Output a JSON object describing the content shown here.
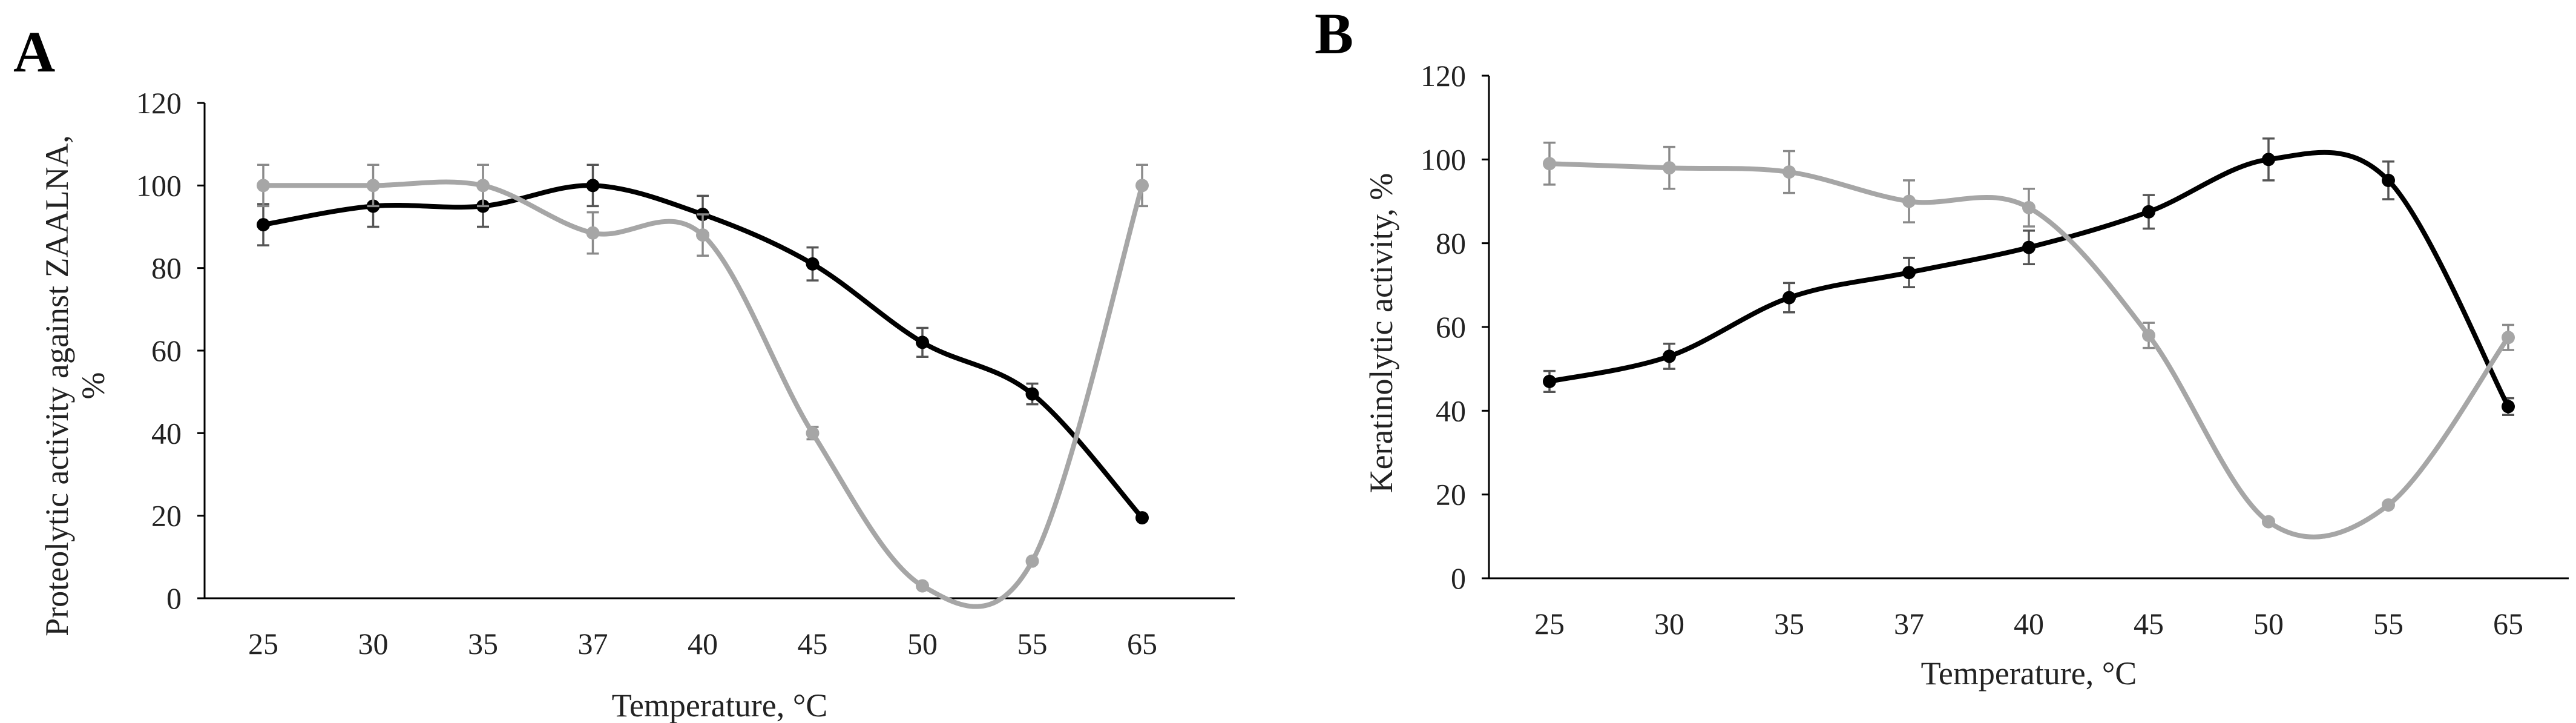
{
  "figure": {
    "colors": {
      "series_black": "#000000",
      "series_gray": "#a6a6a6",
      "errbar_black": "#555555",
      "errbar_gray": "#8a8a8a"
    }
  },
  "chart_data": [
    {
      "panel": "A",
      "type": "line",
      "title": "",
      "xlabel": "Temperature, °C",
      "ylabel": "Proteolytic activity against ZAALNA, %",
      "ylabel_lines": [
        "Proteolytic activity against ZAALNA,",
        "%"
      ],
      "categories": [
        "25",
        "30",
        "35",
        "37",
        "40",
        "45",
        "50",
        "55",
        "65"
      ],
      "ylim": [
        0,
        120
      ],
      "yticks": [
        0,
        20,
        40,
        60,
        80,
        100,
        120
      ],
      "grid": false,
      "series": [
        {
          "name": "black",
          "color": "#000000",
          "values": [
            90.5,
            95,
            95,
            100,
            93,
            81,
            62,
            49.5,
            19.5
          ],
          "errors": [
            5,
            5,
            5,
            5,
            4.5,
            4,
            3.5,
            2.5,
            0.5
          ]
        },
        {
          "name": "gray",
          "color": "#a6a6a6",
          "values": [
            100,
            100,
            100,
            88.5,
            88,
            40,
            3,
            9,
            100
          ],
          "errors": [
            5,
            5,
            5,
            5,
            5,
            1.5,
            0.5,
            0.5,
            5
          ]
        }
      ]
    },
    {
      "panel": "B",
      "type": "line",
      "title": "",
      "xlabel": "Temperature, °C",
      "ylabel": "Keratinolytic activity, %",
      "ylabel_lines": [
        "Keratinolytic activity, %"
      ],
      "categories": [
        "25",
        "30",
        "35",
        "37",
        "40",
        "45",
        "50",
        "55",
        "65"
      ],
      "ylim": [
        0,
        120
      ],
      "yticks": [
        0,
        20,
        40,
        60,
        80,
        100,
        120
      ],
      "grid": false,
      "series": [
        {
          "name": "black",
          "color": "#000000",
          "values": [
            47,
            53,
            67,
            73,
            79,
            87.5,
            100,
            95,
            41
          ],
          "errors": [
            2.5,
            3,
            3.5,
            3.5,
            4,
            4,
            5,
            4.5,
            2
          ]
        },
        {
          "name": "gray",
          "color": "#a6a6a6",
          "values": [
            99,
            98,
            97,
            90,
            88.5,
            58,
            13.5,
            17.5,
            57.5
          ],
          "errors": [
            5,
            5,
            5,
            5,
            4.5,
            3,
            0.5,
            0.5,
            3
          ]
        }
      ]
    }
  ]
}
